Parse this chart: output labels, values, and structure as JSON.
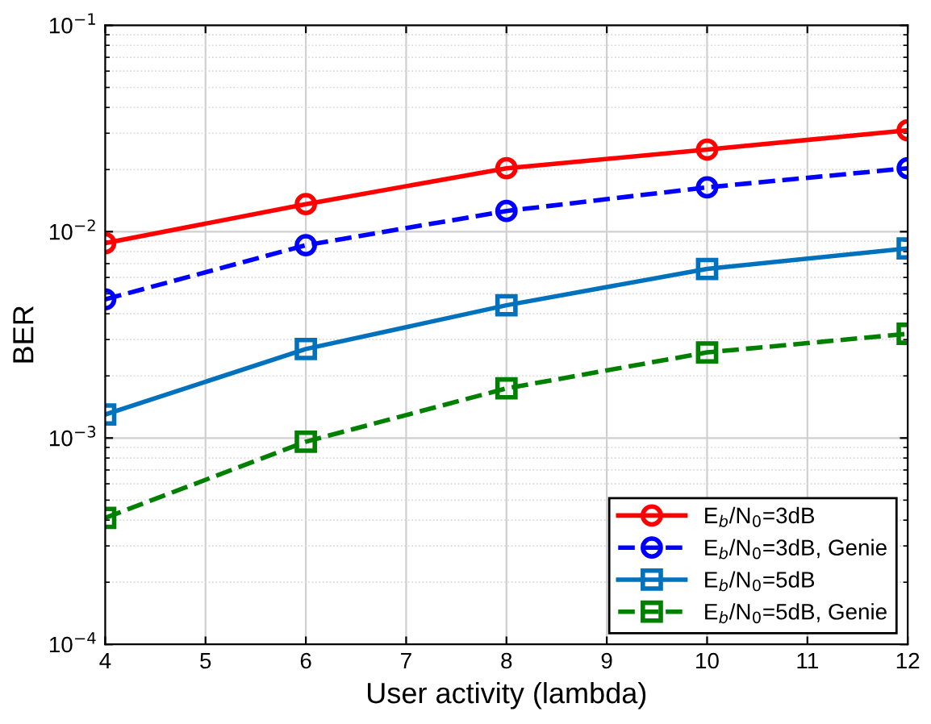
{
  "chart_data": {
    "type": "line",
    "xlabel": "User activity (lambda)",
    "ylabel": "BER",
    "x": [
      4,
      6,
      8,
      10,
      12
    ],
    "series": [
      {
        "name": "E$_{b}$/N$_{0}$=3dB",
        "color": "#ff0000",
        "marker": "circle",
        "line_style": "solid",
        "values": [
          0.0088,
          0.0136,
          0.0203,
          0.025,
          0.031
        ]
      },
      {
        "name": "E$_{b}$/N$_{0}$=3dB, Genie",
        "color": "#0000ff",
        "marker": "circle",
        "line_style": "dashed",
        "values": [
          0.0047,
          0.0086,
          0.0126,
          0.0164,
          0.0203
        ]
      },
      {
        "name": "E$_{b}$/N$_{0}$=5dB",
        "color": "#0072bd",
        "marker": "square",
        "line_style": "solid",
        "values": [
          0.0013,
          0.0027,
          0.0044,
          0.0066,
          0.0083
        ]
      },
      {
        "name": "E$_{b}$/N$_{0}$=5dB, Genie",
        "color": "#008000",
        "marker": "square",
        "line_style": "dashed",
        "values": [
          0.00041,
          0.00096,
          0.00174,
          0.0026,
          0.0032
        ]
      }
    ],
    "log": "y",
    "xlim": [
      4,
      12
    ],
    "xticks": [
      4,
      5,
      6,
      7,
      8,
      9,
      10,
      11,
      12
    ],
    "ylim": [
      0.0001,
      0.1
    ],
    "yticks": [
      {
        "value": 0.0001,
        "label": "10$^{−4}$"
      },
      {
        "value": 0.001,
        "label": "10$^{−3}$"
      },
      {
        "value": 0.01,
        "label": "10$^{−2}$"
      },
      {
        "value": 0.1,
        "label": "10$^{−1}$"
      }
    ],
    "grid": true,
    "legend": "bottom right"
  }
}
